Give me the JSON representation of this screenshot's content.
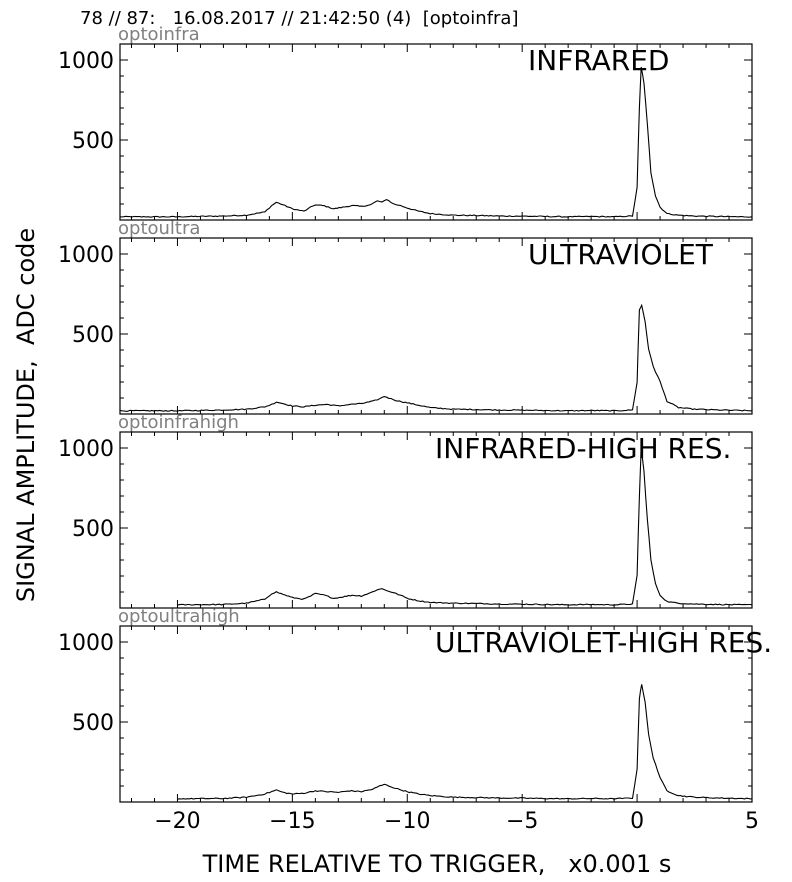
{
  "header": "78 // 87:   16.08.2017 // 21:42:50 (4)  [optoinfra]",
  "ylabel": "SIGNAL AMPLITUDE,  ADC code",
  "xlabel": "TIME RELATIVE TO TRIGGER,   x0.001 s",
  "chart_data": [
    {
      "type": "line",
      "channel": "optoinfra",
      "title": "INFRARED",
      "xlim": [
        -22.5,
        5
      ],
      "ylim": [
        0,
        1100
      ],
      "yticks": [
        500,
        1000
      ],
      "xticks": [
        -20,
        -15,
        -10,
        -5,
        0,
        5
      ],
      "series": [
        {
          "x": [
            -22.5,
            -20,
            -18,
            -17,
            -16.2,
            -15.9,
            -15.7,
            -15.4,
            -15,
            -14.5,
            -14.2,
            -14,
            -13.6,
            -13.2,
            -12.8,
            -12.4,
            -12,
            -11.6,
            -11.3,
            -11.1,
            -10.9,
            -10.6,
            -10.3,
            -10,
            -9.5,
            -9,
            -8,
            -7,
            -6,
            -5,
            -4,
            -3,
            -2,
            -1,
            -0.2,
            0,
            0.1,
            0.18,
            0.3,
            0.45,
            0.6,
            0.8,
            1.0,
            1.3,
            1.8,
            2.5,
            3.5,
            4.5,
            5
          ],
          "y": [
            20,
            20,
            25,
            30,
            50,
            90,
            110,
            95,
            70,
            55,
            80,
            95,
            88,
            70,
            80,
            90,
            85,
            95,
            120,
            110,
            130,
            100,
            90,
            75,
            55,
            40,
            30,
            28,
            25,
            24,
            22,
            20,
            22,
            20,
            25,
            200,
            700,
            960,
            850,
            600,
            300,
            150,
            80,
            40,
            30,
            25,
            22,
            20,
            20
          ]
        }
      ]
    },
    {
      "type": "line",
      "channel": "optoultra",
      "title": "ULTRAVIOLET",
      "xlim": [
        -22.5,
        5
      ],
      "ylim": [
        0,
        1100
      ],
      "yticks": [
        500,
        1000
      ],
      "xticks": [
        -20,
        -15,
        -10,
        -5,
        0,
        5
      ],
      "series": [
        {
          "x": [
            -22.5,
            -20,
            -18,
            -17,
            -16.2,
            -15.9,
            -15.7,
            -15.4,
            -15,
            -14.5,
            -14,
            -13.5,
            -13,
            -12.5,
            -12,
            -11.5,
            -11.2,
            -11,
            -10.8,
            -10.5,
            -10,
            -9.5,
            -9,
            -8,
            -7,
            -6,
            -5,
            -4,
            -3,
            -2,
            -1,
            -0.2,
            0,
            0.1,
            0.2,
            0.35,
            0.5,
            0.7,
            1.0,
            1.3,
            1.8,
            2.5,
            3.5,
            4.5,
            5
          ],
          "y": [
            20,
            20,
            25,
            30,
            45,
            60,
            75,
            65,
            50,
            45,
            55,
            60,
            50,
            60,
            65,
            80,
            95,
            110,
            100,
            85,
            70,
            55,
            40,
            30,
            28,
            25,
            24,
            22,
            20,
            22,
            20,
            25,
            200,
            650,
            680,
            580,
            400,
            300,
            200,
            80,
            40,
            30,
            25,
            22,
            20
          ]
        }
      ]
    },
    {
      "type": "line",
      "channel": "optoinfrahigh",
      "title": "INFRARED-HIGH RES.",
      "xlim": [
        -22.5,
        5
      ],
      "ylim": [
        0,
        1100
      ],
      "yticks": [
        500,
        1000
      ],
      "xticks": [
        -20,
        -15,
        -10,
        -5,
        0,
        5
      ],
      "series": [
        {
          "x": [
            -20,
            -18,
            -17,
            -16.2,
            -15.9,
            -15.7,
            -15.4,
            -15,
            -14.5,
            -14.2,
            -14,
            -13.6,
            -13.2,
            -12.8,
            -12.4,
            -12,
            -11.6,
            -11.3,
            -11.1,
            -10.9,
            -10.6,
            -10.3,
            -10,
            -9.5,
            -9,
            -8,
            -7,
            -6,
            -5,
            -4,
            -3,
            -2,
            -1,
            -0.2,
            0,
            0.1,
            0.18,
            0.3,
            0.45,
            0.6,
            0.8,
            1.0,
            1.3,
            1.8,
            2.5,
            3.5,
            4.5,
            5
          ],
          "y": [
            20,
            22,
            30,
            55,
            90,
            100,
            85,
            65,
            55,
            75,
            90,
            80,
            60,
            70,
            80,
            75,
            95,
            115,
            120,
            110,
            95,
            80,
            60,
            45,
            35,
            30,
            28,
            25,
            24,
            22,
            20,
            22,
            20,
            25,
            200,
            700,
            1000,
            850,
            550,
            300,
            150,
            80,
            40,
            30,
            25,
            22,
            20,
            20
          ]
        }
      ]
    },
    {
      "type": "line",
      "channel": "optoultrahigh",
      "title": "ULTRAVIOLET-HIGH RES.",
      "xlim": [
        -22.5,
        5
      ],
      "ylim": [
        0,
        1100
      ],
      "yticks": [
        500,
        1000
      ],
      "xticks": [
        -20,
        -15,
        -10,
        -5,
        0,
        5
      ],
      "series": [
        {
          "x": [
            -20,
            -18,
            -17,
            -16.2,
            -15.9,
            -15.7,
            -15.4,
            -15,
            -14.5,
            -14,
            -13.5,
            -13,
            -12.5,
            -12,
            -11.5,
            -11.2,
            -11,
            -10.8,
            -10.5,
            -10,
            -9.5,
            -9,
            -8,
            -7,
            -6,
            -5,
            -4,
            -3,
            -2,
            -1,
            -0.2,
            0,
            0.1,
            0.2,
            0.35,
            0.5,
            0.7,
            1.0,
            1.3,
            1.8,
            2.5,
            3.5,
            4.5,
            5
          ],
          "y": [
            20,
            22,
            30,
            50,
            65,
            75,
            60,
            50,
            55,
            70,
            65,
            60,
            70,
            65,
            80,
            100,
            110,
            100,
            85,
            65,
            50,
            40,
            30,
            28,
            25,
            24,
            22,
            20,
            22,
            20,
            25,
            200,
            650,
            740,
            620,
            420,
            280,
            150,
            70,
            40,
            30,
            25,
            22,
            20
          ]
        }
      ]
    }
  ]
}
